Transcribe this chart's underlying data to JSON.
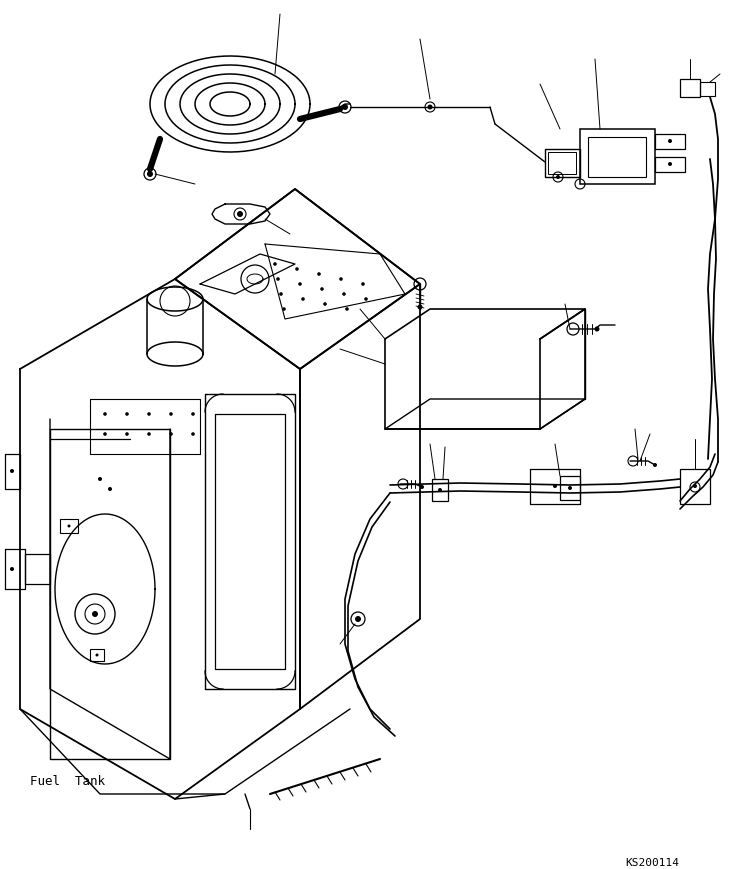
{
  "label_fuel_tank": "Fuel  Tank",
  "label_ks": "KS200114",
  "bg_color": "#ffffff",
  "line_color": "#000000",
  "fig_width": 7.39,
  "fig_height": 8.7
}
